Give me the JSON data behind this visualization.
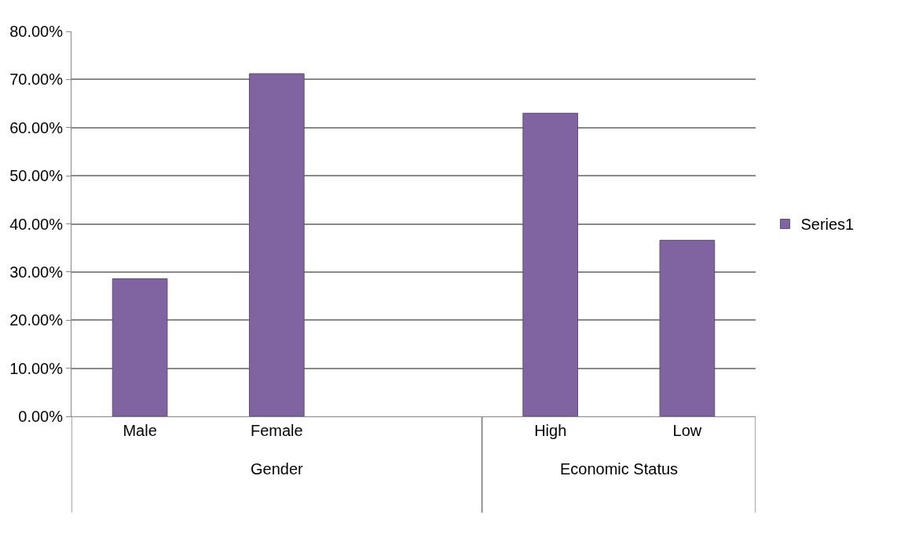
{
  "chart_data": {
    "type": "bar",
    "categories": [
      "Male",
      "Female",
      null,
      "High",
      "Low"
    ],
    "series": [
      {
        "name": "Series1",
        "color": "#8064a2",
        "values": [
          28.6,
          71.2,
          null,
          63.0,
          36.6
        ]
      }
    ],
    "ylim": [
      0,
      80
    ],
    "yticks": [
      {
        "value": 0,
        "label": "0.00%"
      },
      {
        "value": 10,
        "label": "10.00%"
      },
      {
        "value": 20,
        "label": "20.00%"
      },
      {
        "value": 30,
        "label": "30.00%"
      },
      {
        "value": 40,
        "label": "40.00%"
      },
      {
        "value": 50,
        "label": "50.00%"
      },
      {
        "value": 60,
        "label": "60.00%"
      },
      {
        "value": 70,
        "label": "70.00%"
      },
      {
        "value": 80,
        "label": "80.00%"
      }
    ],
    "annotations": [
      "Gender",
      "Economic Status"
    ],
    "grid": "y",
    "legend": "right"
  }
}
